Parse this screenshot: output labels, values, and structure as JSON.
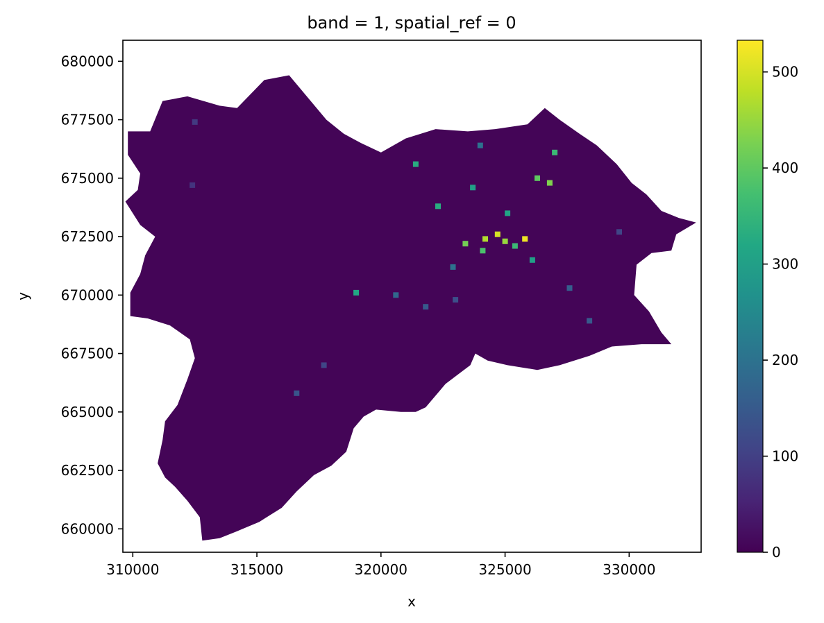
{
  "chart_data": {
    "type": "heatmap",
    "title": "band = 1, spatial_ref = 0",
    "xlabel": "x",
    "ylabel": "y",
    "xlim": [
      309600,
      332900
    ],
    "ylim": [
      659000,
      680900
    ],
    "xticks": [
      310000,
      315000,
      320000,
      325000,
      330000
    ],
    "xtick_labels": [
      "310000",
      "315000",
      "320000",
      "325000",
      "330000"
    ],
    "yticks": [
      660000,
      662500,
      665000,
      667500,
      670000,
      672500,
      675000,
      677500,
      680000
    ],
    "ytick_labels": [
      "660000",
      "662500",
      "665000",
      "667500",
      "670000",
      "672500",
      "675000",
      "677500",
      "680000"
    ],
    "colormap": "viridis",
    "colorbar": {
      "range": [
        0,
        533
      ],
      "ticks": [
        0,
        100,
        200,
        300,
        400,
        500
      ],
      "tick_labels": [
        "0",
        "100",
        "200",
        "300",
        "400",
        "500"
      ]
    },
    "grid": false,
    "region_outline": [
      [
        309800,
        677000
      ],
      [
        310700,
        677000
      ],
      [
        311200,
        678300
      ],
      [
        312200,
        678500
      ],
      [
        313500,
        678100
      ],
      [
        314200,
        678000
      ],
      [
        315300,
        679200
      ],
      [
        316300,
        679400
      ],
      [
        317800,
        677500
      ],
      [
        318500,
        676900
      ],
      [
        319200,
        676500
      ],
      [
        320000,
        676100
      ],
      [
        321000,
        676700
      ],
      [
        322200,
        677100
      ],
      [
        323500,
        677000
      ],
      [
        324600,
        677100
      ],
      [
        325900,
        677300
      ],
      [
        326600,
        678000
      ],
      [
        327200,
        677500
      ],
      [
        328000,
        676900
      ],
      [
        328700,
        676400
      ],
      [
        329500,
        675600
      ],
      [
        330100,
        674800
      ],
      [
        330700,
        674300
      ],
      [
        331300,
        673600
      ],
      [
        332000,
        673300
      ],
      [
        332700,
        673100
      ],
      [
        331900,
        672600
      ],
      [
        331700,
        671900
      ],
      [
        330900,
        671800
      ],
      [
        330300,
        671300
      ],
      [
        330200,
        670000
      ],
      [
        330800,
        669300
      ],
      [
        331300,
        668400
      ],
      [
        331700,
        667900
      ],
      [
        330500,
        667900
      ],
      [
        329300,
        667800
      ],
      [
        328400,
        667400
      ],
      [
        327200,
        667000
      ],
      [
        326300,
        666800
      ],
      [
        325100,
        667000
      ],
      [
        324300,
        667200
      ],
      [
        323800,
        667500
      ],
      [
        323600,
        667000
      ],
      [
        323100,
        666600
      ],
      [
        322600,
        666200
      ],
      [
        322200,
        665700
      ],
      [
        321800,
        665200
      ],
      [
        321400,
        665000
      ],
      [
        320800,
        665000
      ],
      [
        319800,
        665100
      ],
      [
        319300,
        664800
      ],
      [
        318900,
        664300
      ],
      [
        318600,
        663300
      ],
      [
        318000,
        662700
      ],
      [
        317300,
        662300
      ],
      [
        316600,
        661600
      ],
      [
        316000,
        660900
      ],
      [
        315100,
        660300
      ],
      [
        314200,
        659900
      ],
      [
        313500,
        659600
      ],
      [
        312800,
        659500
      ],
      [
        312700,
        660500
      ],
      [
        312200,
        661200
      ],
      [
        311700,
        661800
      ],
      [
        311300,
        662200
      ],
      [
        311000,
        662800
      ],
      [
        311200,
        663800
      ],
      [
        311300,
        664600
      ],
      [
        311800,
        665300
      ],
      [
        312200,
        666400
      ],
      [
        312500,
        667300
      ],
      [
        312300,
        668100
      ],
      [
        311500,
        668700
      ],
      [
        310600,
        669000
      ],
      [
        309900,
        669100
      ],
      [
        309900,
        670100
      ],
      [
        310300,
        670900
      ],
      [
        310500,
        671700
      ],
      [
        310900,
        672500
      ],
      [
        310300,
        673000
      ],
      [
        309700,
        674000
      ],
      [
        310200,
        674500
      ],
      [
        310300,
        675200
      ],
      [
        309800,
        676000
      ]
    ],
    "hotspots": [
      {
        "x": 325800,
        "y": 672400,
        "value": 520
      },
      {
        "x": 324700,
        "y": 672600,
        "value": 500
      },
      {
        "x": 324200,
        "y": 672400,
        "value": 470
      },
      {
        "x": 325000,
        "y": 672300,
        "value": 450
      },
      {
        "x": 323400,
        "y": 672200,
        "value": 420
      },
      {
        "x": 326800,
        "y": 674800,
        "value": 430
      },
      {
        "x": 326300,
        "y": 675000,
        "value": 400
      },
      {
        "x": 327000,
        "y": 676100,
        "value": 360
      },
      {
        "x": 324100,
        "y": 671900,
        "value": 380
      },
      {
        "x": 325400,
        "y": 672100,
        "value": 360
      },
      {
        "x": 322300,
        "y": 673800,
        "value": 330
      },
      {
        "x": 323700,
        "y": 674600,
        "value": 300
      },
      {
        "x": 325100,
        "y": 673500,
        "value": 310
      },
      {
        "x": 326100,
        "y": 671500,
        "value": 300
      },
      {
        "x": 321400,
        "y": 675600,
        "value": 330
      },
      {
        "x": 324000,
        "y": 676400,
        "value": 200
      },
      {
        "x": 322900,
        "y": 671200,
        "value": 200
      },
      {
        "x": 319000,
        "y": 670100,
        "value": 320
      },
      {
        "x": 320600,
        "y": 670000,
        "value": 180
      },
      {
        "x": 327600,
        "y": 670300,
        "value": 160
      },
      {
        "x": 328400,
        "y": 668900,
        "value": 150
      },
      {
        "x": 316600,
        "y": 665800,
        "value": 140
      },
      {
        "x": 317700,
        "y": 667000,
        "value": 110
      },
      {
        "x": 321800,
        "y": 669500,
        "value": 150
      },
      {
        "x": 323000,
        "y": 669800,
        "value": 130
      },
      {
        "x": 329600,
        "y": 672700,
        "value": 110
      },
      {
        "x": 312500,
        "y": 677400,
        "value": 90
      },
      {
        "x": 312400,
        "y": 674700,
        "value": 80
      }
    ]
  }
}
